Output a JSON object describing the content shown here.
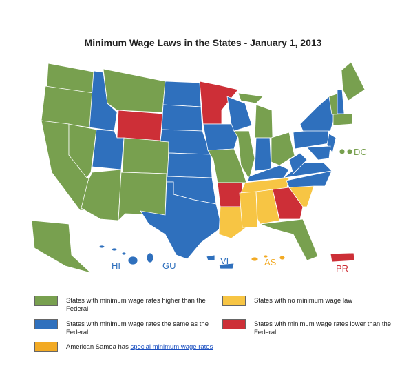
{
  "title": "Minimum Wage Laws in the States - January 1, 2013",
  "territories": [
    "DC",
    "HI",
    "GU",
    "VI",
    "AS",
    "PR"
  ],
  "legend": [
    {
      "label": "States with minimum wage rates higher than the Federal",
      "color": "#78a04f"
    },
    {
      "label": "States with minimum wage rates the same as the Federal",
      "color": "#2f70bd"
    },
    {
      "label": "States with no minimum wage law",
      "color": "#f7c544"
    },
    {
      "label": "States with minimum wage rates lower than the Federal",
      "color": "#cd2f37"
    },
    {
      "label": "American Samoa has",
      "link": "special minimum wage rates",
      "color": "#f2aa24"
    }
  ]
}
